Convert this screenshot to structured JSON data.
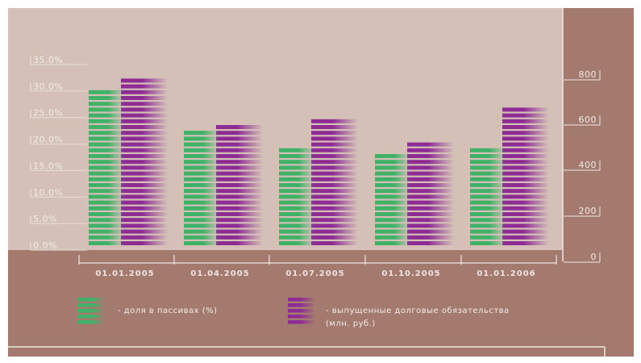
{
  "colors": {
    "plot_bg": "#d4c0b7",
    "frame_bg": "#a47a6f",
    "series_green": "#3fb267",
    "series_purple": "#8e2b95",
    "text": "#f1e8e4"
  },
  "chart_data": {
    "type": "bar",
    "categories": [
      "01.01.2005",
      "01.04.2005",
      "01.07.2005",
      "01.10.2005",
      "01.01.2006"
    ],
    "series": [
      {
        "name": "- доля в пассивах (%)",
        "axis": "left",
        "values": [
          29.5,
          22.5,
          19.0,
          17.5,
          19.0
        ]
      },
      {
        "name": "- выпущенные долговые обязательства (млн. руб.)",
        "axis": "right",
        "values": [
          720,
          525,
          560,
          440,
          610
        ]
      }
    ],
    "y_left": {
      "ticks": [
        "35.0%",
        "30.0%",
        "25.0%",
        "20.0%",
        "15.0%",
        "10.0%",
        "5.0%",
        "0.0%"
      ],
      "ylim": [
        0,
        35
      ]
    },
    "y_right": {
      "ticks": [
        "800",
        "600",
        "400",
        "200",
        "0"
      ],
      "ylim": [
        0,
        840
      ]
    },
    "legend": "bottom",
    "grid": false
  }
}
